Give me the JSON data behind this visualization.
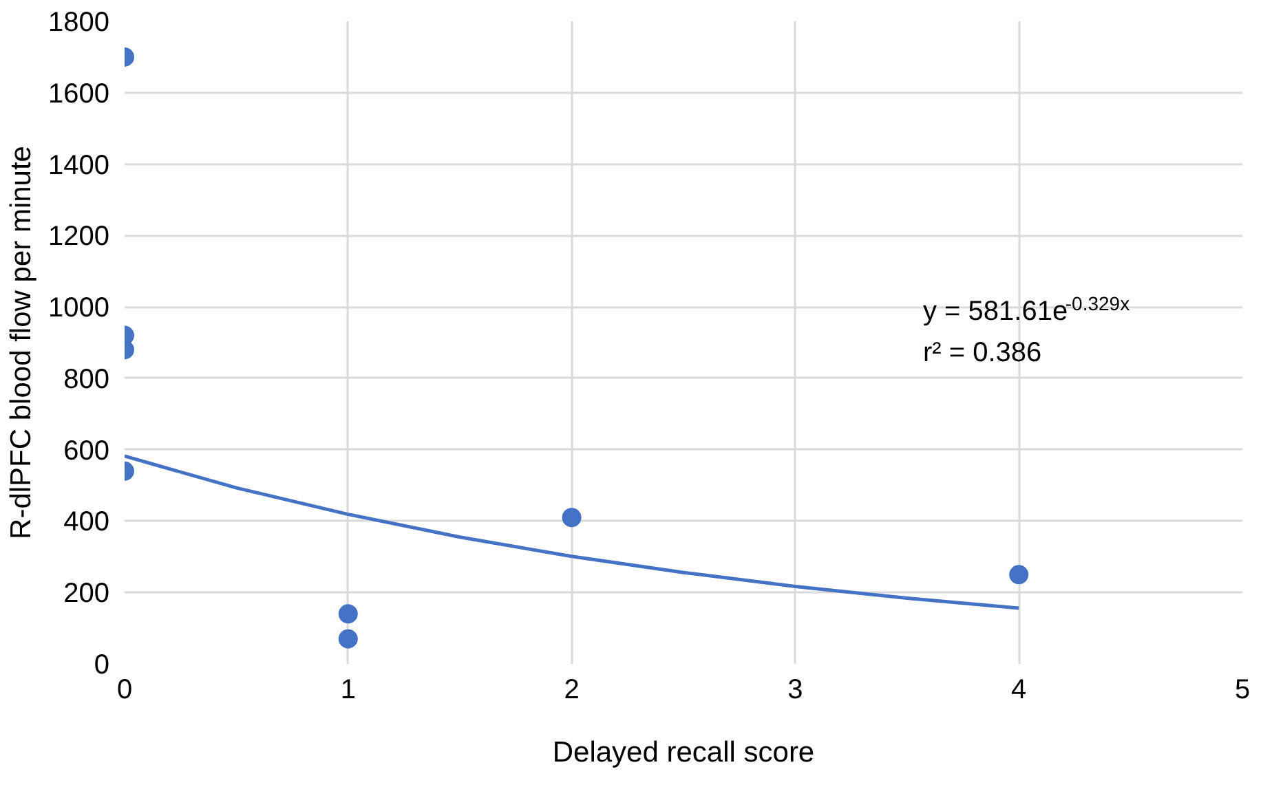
{
  "chart_data": {
    "type": "scatter",
    "xlabel": "Delayed recall score",
    "ylabel": "R-dlPFC blood flow per minute",
    "series": [
      {
        "color": "#4472c4",
        "x": [
          0,
          0,
          0,
          0,
          1,
          1,
          2,
          4
        ],
        "values": [
          1700,
          920,
          880,
          540,
          140,
          70,
          410,
          250
        ],
        "marker": "circle"
      },
      {
        "type": "line",
        "color": "#4472c4",
        "x": [
          0,
          0.5,
          1,
          1.5,
          2,
          2.5,
          3,
          3.5,
          4
        ],
        "values": [
          582,
          493,
          419,
          355,
          301,
          256,
          217,
          184,
          156
        ],
        "line_style": "solid"
      }
    ],
    "annotations": [
      "y = 581.61e$^{-0.329x}$",
      "r² = 0.386"
    ],
    "xlim": [
      0,
      5
    ],
    "xticks": [
      0,
      1,
      2,
      3,
      4,
      5
    ],
    "ylim": [
      0,
      1800
    ],
    "yticks": [
      0,
      200,
      400,
      600,
      800,
      1000,
      1200,
      1400,
      1600,
      1800
    ],
    "grid": true
  }
}
